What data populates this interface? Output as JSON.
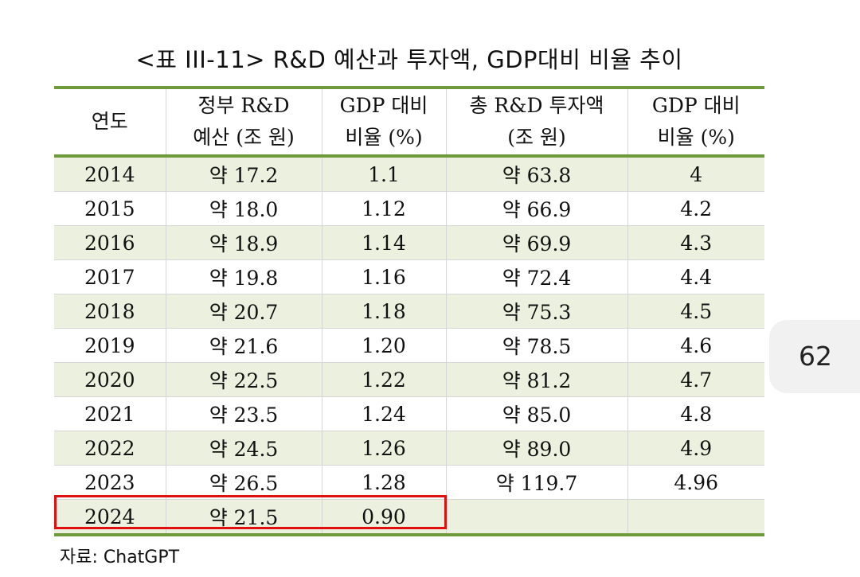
{
  "title": "<표 III-11> R&D 예산과 투자액, GDP대비 비율 추이",
  "headers": [
    {
      "line1": "연도",
      "line2": ""
    },
    {
      "line1": "정부 R&D",
      "line2": "예산 (조 원)"
    },
    {
      "line1": "GDP 대비",
      "line2": "비율 (%)"
    },
    {
      "line1": "총 R&D 투자액",
      "line2": "(조 원)"
    },
    {
      "line1": "GDP 대비",
      "line2": "비율 (%)"
    }
  ],
  "rows": [
    [
      "2014",
      "약 17.2",
      "1.1",
      "약 63.8",
      "4"
    ],
    [
      "2015",
      "약 18.0",
      "1.12",
      "약 66.9",
      "4.2"
    ],
    [
      "2016",
      "약 18.9",
      "1.14",
      "약 69.9",
      "4.3"
    ],
    [
      "2017",
      "약 19.8",
      "1.16",
      "약 72.4",
      "4.4"
    ],
    [
      "2018",
      "약 20.7",
      "1.18",
      "약 75.3",
      "4.5"
    ],
    [
      "2019",
      "약 21.6",
      "1.20",
      "약 78.5",
      "4.6"
    ],
    [
      "2020",
      "약 22.5",
      "1.22",
      "약 81.2",
      "4.7"
    ],
    [
      "2021",
      "약 23.5",
      "1.24",
      "약 85.0",
      "4.8"
    ],
    [
      "2022",
      "약 24.5",
      "1.26",
      "약 89.0",
      "4.9"
    ],
    [
      "2023",
      "약 26.5",
      "1.28",
      "약 119.7",
      "4.96"
    ],
    [
      "2024",
      "약 21.5",
      "0.90",
      "",
      ""
    ]
  ],
  "source": "자료: ChatGPT",
  "page_number": "62",
  "colors": {
    "rule": "#6f9a3c",
    "alt_row": "#ebf1de",
    "highlight": "#e01010"
  }
}
